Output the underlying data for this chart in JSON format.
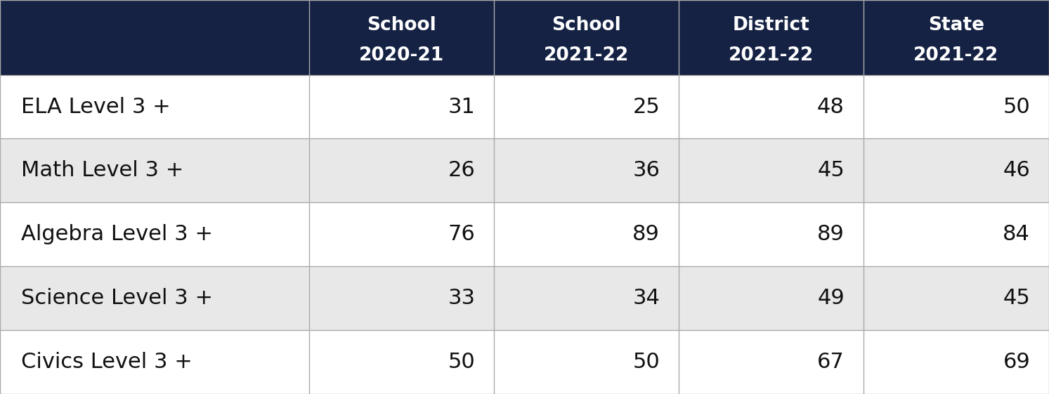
{
  "col_headers": [
    [
      "School",
      "2020-21"
    ],
    [
      "School",
      "2021-22"
    ],
    [
      "District",
      "2021-22"
    ],
    [
      "State",
      "2021-22"
    ]
  ],
  "row_labels": [
    "ELA Level 3 +",
    "Math Level 3 +",
    "Algebra Level 3 +",
    "Science Level 3 +",
    "Civics Level 3 +"
  ],
  "data": [
    [
      31,
      25,
      48,
      50
    ],
    [
      26,
      36,
      45,
      46
    ],
    [
      76,
      89,
      89,
      84
    ],
    [
      33,
      34,
      49,
      45
    ],
    [
      50,
      50,
      67,
      69
    ]
  ],
  "header_bg_color": "#152244",
  "header_text_color": "#FFFFFF",
  "row_bg_even": "#FFFFFF",
  "row_bg_odd": "#E8E8E8",
  "cell_text_color": "#111111",
  "border_color": "#AAAAAA",
  "fig_bg_color": "#CCCCCC",
  "header_fontsize": 19,
  "cell_fontsize": 22,
  "row_label_fontsize": 22
}
